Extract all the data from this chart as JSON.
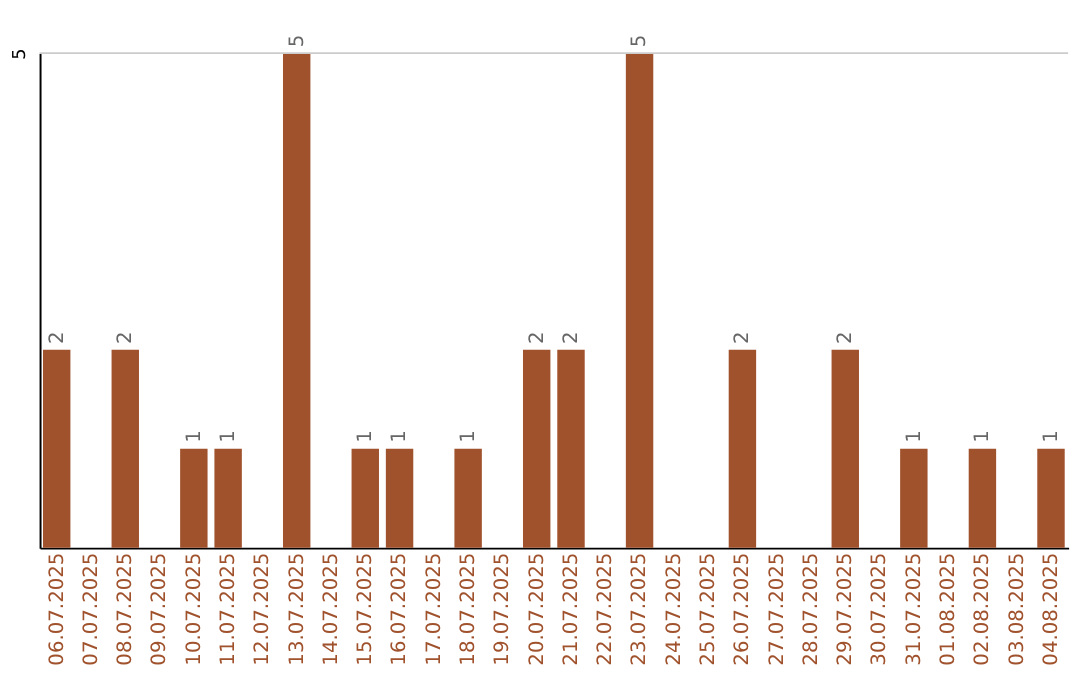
{
  "chart_data": {
    "type": "bar",
    "categories": [
      "06.07.2025",
      "07.07.2025",
      "08.07.2025",
      "09.07.2025",
      "10.07.2025",
      "11.07.2025",
      "12.07.2025",
      "13.07.2025",
      "14.07.2025",
      "15.07.2025",
      "16.07.2025",
      "17.07.2025",
      "18.07.2025",
      "19.07.2025",
      "20.07.2025",
      "21.07.2025",
      "22.07.2025",
      "23.07.2025",
      "24.07.2025",
      "25.07.2025",
      "26.07.2025",
      "27.07.2025",
      "28.07.2025",
      "29.07.2025",
      "30.07.2025",
      "31.07.2025",
      "01.08.2025",
      "02.08.2025",
      "03.08.2025",
      "04.08.2025"
    ],
    "values": [
      2,
      0,
      2,
      0,
      1,
      1,
      0,
      5,
      0,
      1,
      1,
      0,
      1,
      0,
      2,
      2,
      0,
      5,
      0,
      0,
      2,
      0,
      0,
      2,
      0,
      1,
      0,
      1,
      0,
      1
    ],
    "value_labels": [
      "2",
      null,
      "2",
      null,
      "1",
      "1",
      null,
      "5",
      null,
      "1",
      "1",
      null,
      "1",
      null,
      "2",
      "2",
      null,
      "5",
      null,
      null,
      "2",
      null,
      null,
      "2",
      null,
      "1",
      null,
      "1",
      null,
      "1"
    ],
    "color": "#a0522d",
    "ylim": [
      0,
      5
    ],
    "yticks": [
      5
    ],
    "ref_lines": [
      {
        "axis": "y",
        "value": 5,
        "color": "#cccccc"
      }
    ]
  }
}
